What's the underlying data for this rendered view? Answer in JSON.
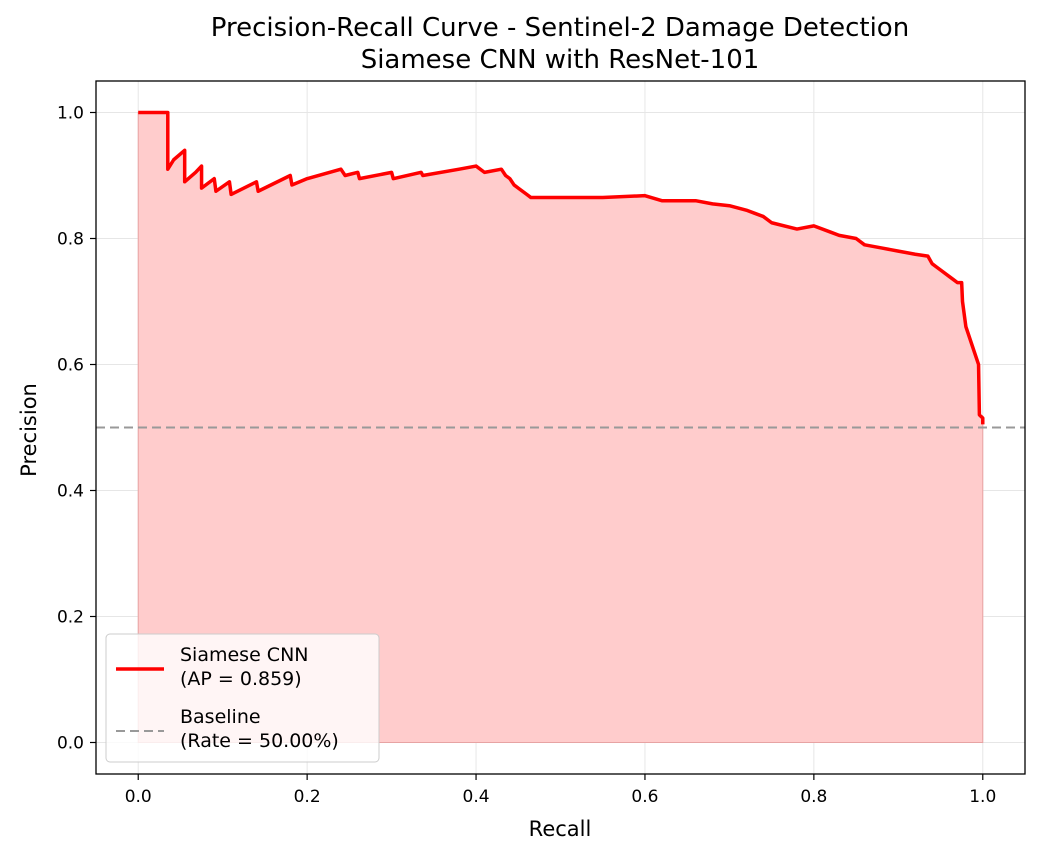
{
  "chart_data": {
    "type": "line",
    "title": "Precision-Recall Curve - Sentinel-2 Damage Detection",
    "subtitle": "Siamese CNN with ResNet-101",
    "xlabel": "Recall",
    "ylabel": "Precision",
    "xlim": [
      -0.05,
      1.05
    ],
    "ylim": [
      -0.05,
      1.05
    ],
    "xticks": [
      "0.0",
      "0.2",
      "0.4",
      "0.6",
      "0.8",
      "1.0"
    ],
    "yticks": [
      "0.0",
      "0.2",
      "0.4",
      "0.6",
      "0.8",
      "1.0"
    ],
    "grid": true,
    "legend_position": "lower-left",
    "series": [
      {
        "name": "Siamese CNN",
        "legend_label": "Siamese CNN\n(AP = 0.859)",
        "color": "#ff0000",
        "fill_color": "#ffcccc",
        "x": [
          0.0,
          0.035,
          0.035,
          0.042,
          0.055,
          0.055,
          0.068,
          0.075,
          0.075,
          0.09,
          0.092,
          0.108,
          0.11,
          0.14,
          0.142,
          0.18,
          0.182,
          0.2,
          0.24,
          0.245,
          0.26,
          0.262,
          0.3,
          0.302,
          0.335,
          0.337,
          0.38,
          0.4,
          0.41,
          0.43,
          0.435,
          0.44,
          0.445,
          0.45,
          0.455,
          0.46,
          0.465,
          0.48,
          0.5,
          0.52,
          0.55,
          0.6,
          0.62,
          0.66,
          0.68,
          0.7,
          0.72,
          0.73,
          0.74,
          0.75,
          0.78,
          0.8,
          0.82,
          0.83,
          0.85,
          0.86,
          0.88,
          0.9,
          0.92,
          0.935,
          0.94,
          0.945,
          0.95,
          0.96,
          0.965,
          0.97,
          0.975,
          0.976,
          0.98,
          0.985,
          0.99,
          0.995,
          0.996,
          1.0,
          1.0
        ],
        "y": [
          1.0,
          1.0,
          0.91,
          0.925,
          0.94,
          0.89,
          0.905,
          0.915,
          0.88,
          0.895,
          0.875,
          0.89,
          0.87,
          0.89,
          0.875,
          0.9,
          0.885,
          0.895,
          0.91,
          0.9,
          0.905,
          0.895,
          0.905,
          0.895,
          0.905,
          0.9,
          0.91,
          0.915,
          0.905,
          0.91,
          0.9,
          0.895,
          0.885,
          0.88,
          0.875,
          0.87,
          0.865,
          0.865,
          0.865,
          0.865,
          0.865,
          0.868,
          0.86,
          0.86,
          0.855,
          0.852,
          0.845,
          0.84,
          0.835,
          0.825,
          0.815,
          0.82,
          0.81,
          0.805,
          0.8,
          0.79,
          0.785,
          0.78,
          0.775,
          0.772,
          0.76,
          0.755,
          0.75,
          0.74,
          0.735,
          0.73,
          0.73,
          0.7,
          0.66,
          0.64,
          0.62,
          0.6,
          0.52,
          0.515,
          0.505
        ]
      },
      {
        "name": "Baseline",
        "legend_label": "Baseline\n(Rate = 50.00%)",
        "color": "#999999",
        "dashed": true,
        "y_constant": 0.5
      }
    ]
  }
}
